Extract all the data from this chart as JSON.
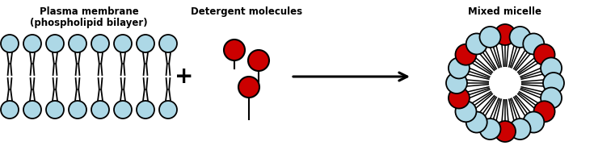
{
  "bg_color": "#ffffff",
  "lipid_color": "#add8e6",
  "lipid_edge": "#000000",
  "detergent_color": "#cc0000",
  "detergent_edge": "#000000",
  "title1": "Plasma membrane",
  "title2": "(phospholipid bilayer)",
  "title3": "Detergent molecules",
  "title4": "Mixed micelle",
  "title_fontsize": 8.5,
  "n_lipids": 8,
  "red_indices_micelle": [
    0,
    3,
    7,
    10,
    14,
    17
  ],
  "n_micelle": 20
}
